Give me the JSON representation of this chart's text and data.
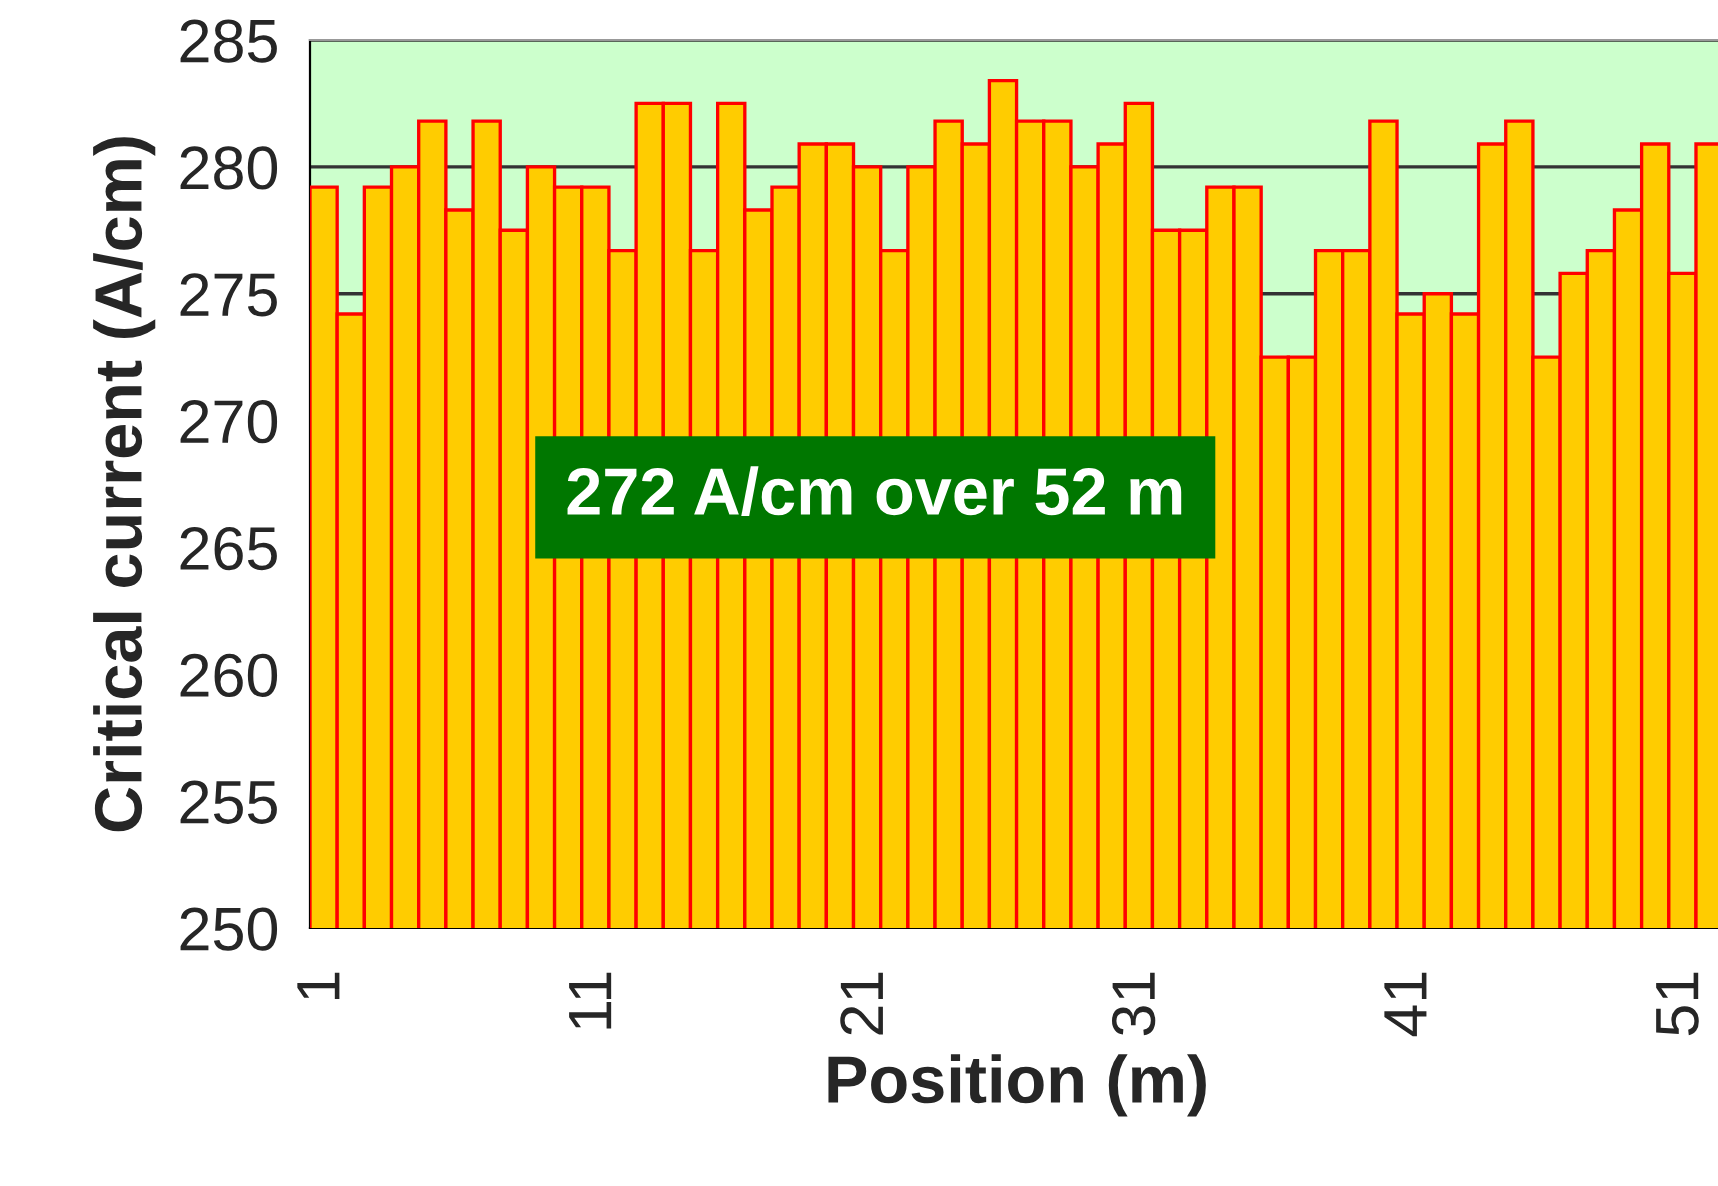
{
  "chart_data": {
    "type": "bar",
    "xlabel": "Position (m)",
    "ylabel": "Critical current (A/cm)",
    "categories": [
      "1",
      null,
      null,
      null,
      null,
      null,
      null,
      null,
      null,
      null,
      "11",
      null,
      null,
      null,
      null,
      null,
      null,
      null,
      null,
      null,
      "21",
      null,
      null,
      null,
      null,
      null,
      null,
      null,
      null,
      null,
      "31",
      null,
      null,
      null,
      null,
      null,
      null,
      null,
      null,
      null,
      "41",
      null,
      null,
      null,
      null,
      null,
      null,
      null,
      null,
      null,
      "51",
      null
    ],
    "values": [
      279.2,
      274.2,
      279.2,
      280.0,
      281.8,
      278.3,
      281.8,
      277.5,
      280.0,
      279.2,
      279.2,
      276.7,
      282.5,
      282.5,
      276.7,
      282.5,
      278.3,
      279.2,
      280.9,
      280.9,
      280.0,
      276.7,
      280.0,
      281.8,
      280.9,
      283.4,
      281.8,
      281.8,
      280.0,
      280.9,
      282.5,
      277.5,
      277.5,
      279.2,
      279.2,
      272.5,
      272.5,
      276.7,
      276.7,
      281.8,
      274.2,
      275.0,
      274.2,
      280.9,
      281.8,
      272.5,
      275.8,
      276.7,
      278.3,
      280.9,
      275.8,
      280.9
    ],
    "color": "#ffcc00",
    "ylim": [
      250,
      285
    ],
    "yticks": [
      250,
      255,
      260,
      265,
      270,
      275,
      280,
      285
    ],
    "grid": "y",
    "annotations": [
      "272 A/cm over 52 m"
    ]
  }
}
